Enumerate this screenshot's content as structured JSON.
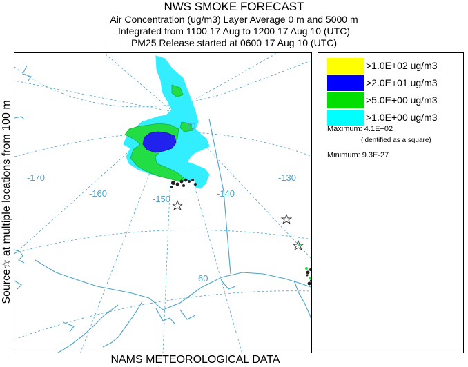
{
  "title": {
    "line1": "NWS SMOKE FORECAST",
    "line2": "Air Concentration (ug/m3) Layer Average    0 m and  5000 m",
    "line3": "Integrated from 1100 17 Aug to 1200 17 Aug 10 (UTC)",
    "line4": "PM25 Release started at 0600 17 Aug 10 (UTC)"
  },
  "side_label": "Source☆  at multiple locations     from   100 m",
  "bottom_label": "NAMS METEOROLOGICAL DATA",
  "legend": {
    "items": [
      {
        "label": ">1.0E+02 ug/m3",
        "color": "#ffff00"
      },
      {
        "label": ">2.0E+01 ug/m3",
        "color": "#0000ff"
      },
      {
        "label": ">5.0E+00 ug/m3",
        "color": "#00dd00"
      },
      {
        "label": ">1.0E+00 ug/m3",
        "color": "#00ffff"
      }
    ],
    "maximum_label": "Maximum: 4.1E+02",
    "maximum_note": "(identified as a square)",
    "minimum_label": "Minimum: 9.3E-27"
  },
  "map": {
    "longitude_labels": [
      "-170",
      "-160",
      "-150",
      "-140",
      "-130"
    ],
    "latitude_labels": [
      "70",
      "60"
    ],
    "colors": {
      "grid": "#4aa3c8",
      "coast": "#4aa3c8",
      "plume_cyan": "#33eeff",
      "plume_green": "#22dd44",
      "plume_blue": "#2222ee"
    }
  }
}
